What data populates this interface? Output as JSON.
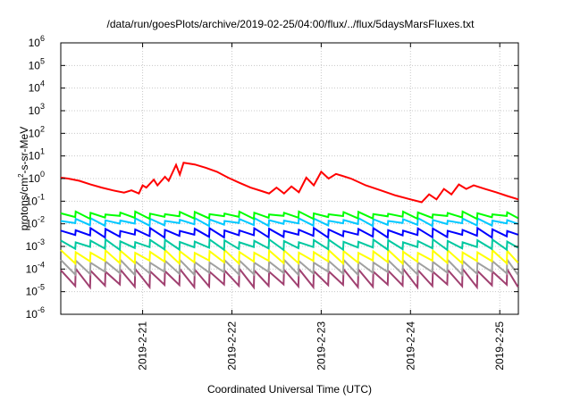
{
  "chart_data": {
    "type": "line",
    "title": "/data/run/goesPlots/archive/2019-02-25/04:00/flux/../flux/5daysMarsFluxes.txt",
    "xlabel": "Coordinated Universal Time (UTC)",
    "ylabel": "protons/cm2-s-sr-MeV",
    "ylabel_parts": {
      "base": "protons/cm",
      "sup": "2",
      "rest": "-s-sr-MeV"
    },
    "yscale": "log",
    "y_ticks": [
      {
        "base": "10",
        "exp": "-6",
        "value": 1e-06
      },
      {
        "base": "10",
        "exp": "-5",
        "value": 1e-05
      },
      {
        "base": "10",
        "exp": "-4",
        "value": 0.0001
      },
      {
        "base": "10",
        "exp": "-3",
        "value": 0.001
      },
      {
        "base": "10",
        "exp": "-2",
        "value": 0.01
      },
      {
        "base": "10",
        "exp": "-1",
        "value": 0.1
      },
      {
        "base": "10",
        "exp": "0",
        "value": 1
      },
      {
        "base": "10",
        "exp": "1",
        "value": 10
      },
      {
        "base": "10",
        "exp": "2",
        "value": 100
      },
      {
        "base": "10",
        "exp": "3",
        "value": 1000
      },
      {
        "base": "10",
        "exp": "4",
        "value": 10000
      },
      {
        "base": "10",
        "exp": "5",
        "value": 100000
      },
      {
        "base": "10",
        "exp": "6",
        "value": 1000000
      }
    ],
    "ylim": [
      1e-06,
      1000000.0
    ],
    "xlim": [
      "2019-02-20T02:00",
      "2019-02-25T05:00"
    ],
    "x_ticks": [
      {
        "label": "2019-2-21",
        "date": "2019-02-21T00:00"
      },
      {
        "label": "2019-2-22",
        "date": "2019-02-22T00:00"
      },
      {
        "label": "2019-2-23",
        "date": "2019-02-23T00:00"
      },
      {
        "label": "2019-2-24",
        "date": "2019-02-24T00:00"
      },
      {
        "label": "2019-2-25",
        "date": "2019-02-25T00:00"
      }
    ],
    "grid": true,
    "series": [
      {
        "color": "#ff0000",
        "points": [
          [
            "2019-02-20T02:00",
            1.1
          ],
          [
            "2019-02-20T04:00",
            1.0
          ],
          [
            "2019-02-20T07:00",
            0.8
          ],
          [
            "2019-02-20T10:00",
            0.55
          ],
          [
            "2019-02-20T13:00",
            0.4
          ],
          [
            "2019-02-20T16:00",
            0.3
          ],
          [
            "2019-02-20T19:00",
            0.24
          ],
          [
            "2019-02-20T21:00",
            0.3
          ],
          [
            "2019-02-20T23:00",
            0.22
          ],
          [
            "2019-02-21T00:00",
            0.5
          ],
          [
            "2019-02-20T00:00",
            null
          ],
          [
            "2019-02-21T01:00",
            0.4
          ],
          [
            "2019-02-21T03:00",
            0.9
          ],
          [
            "2019-02-21T04:00",
            0.5
          ],
          [
            "2019-02-21T06:00",
            1.2
          ],
          [
            "2019-02-21T07:00",
            0.8
          ],
          [
            "2019-02-21T09:00",
            4.0
          ],
          [
            "2019-02-21T10:00",
            1.5
          ],
          [
            "2019-02-21T11:00",
            5.0
          ],
          [
            "2019-02-21T14:00",
            4.2
          ],
          [
            "2019-02-21T17:00",
            3.0
          ],
          [
            "2019-02-21T20:00",
            2.0
          ],
          [
            "2019-02-21T23:00",
            1.1
          ],
          [
            "2019-02-22T02:00",
            0.65
          ],
          [
            "2019-02-22T05:00",
            0.4
          ],
          [
            "2019-02-22T08:00",
            0.28
          ],
          [
            "2019-02-22T10:00",
            0.22
          ],
          [
            "2019-02-22T12:00",
            0.4
          ],
          [
            "2019-02-22T14:00",
            0.22
          ],
          [
            "2019-02-22T16:00",
            0.45
          ],
          [
            "2019-02-22T18:00",
            0.25
          ],
          [
            "2019-02-22T20:00",
            1.1
          ],
          [
            "2019-02-22T22:00",
            0.5
          ],
          [
            "2019-02-23T00:00",
            2.0
          ],
          [
            "2019-02-23T02:00",
            1.0
          ],
          [
            "2019-02-23T04:00",
            1.6
          ],
          [
            "2019-02-23T08:00",
            1.0
          ],
          [
            "2019-02-23T12:00",
            0.5
          ],
          [
            "2019-02-23T16:00",
            0.3
          ],
          [
            "2019-02-23T20:00",
            0.18
          ],
          [
            "2019-02-24T00:00",
            0.12
          ],
          [
            "2019-02-24T03:00",
            0.09
          ],
          [
            "2019-02-24T05:00",
            0.2
          ],
          [
            "2019-02-24T07:00",
            0.12
          ],
          [
            "2019-02-24T09:00",
            0.35
          ],
          [
            "2019-02-24T11:00",
            0.2
          ],
          [
            "2019-02-24T13:00",
            0.55
          ],
          [
            "2019-02-24T15:00",
            0.35
          ],
          [
            "2019-02-24T17:00",
            0.5
          ],
          [
            "2019-02-24T20:00",
            0.35
          ],
          [
            "2019-02-24T23:00",
            0.25
          ],
          [
            "2019-02-25T02:00",
            0.17
          ],
          [
            "2019-02-25T05:00",
            0.12
          ]
        ]
      }
    ],
    "bands": [
      {
        "color": "#00ff00",
        "mean": 0.024,
        "amp": 1.6
      },
      {
        "color": "#00c8ff",
        "mean": 0.012,
        "amp": 1.7
      },
      {
        "color": "#0000ff",
        "mean": 0.004,
        "amp": 2.0
      },
      {
        "color": "#00c8a0",
        "mean": 0.0012,
        "amp": 2.2
      },
      {
        "color": "#ffff00",
        "mean": 0.00035,
        "amp": 3.0
      },
      {
        "color": "#a0a0a0",
        "mean": 0.00012,
        "amp": 3.5
      },
      {
        "color": "#a04070",
        "mean": 4e-05,
        "amp": 5.0
      }
    ]
  }
}
